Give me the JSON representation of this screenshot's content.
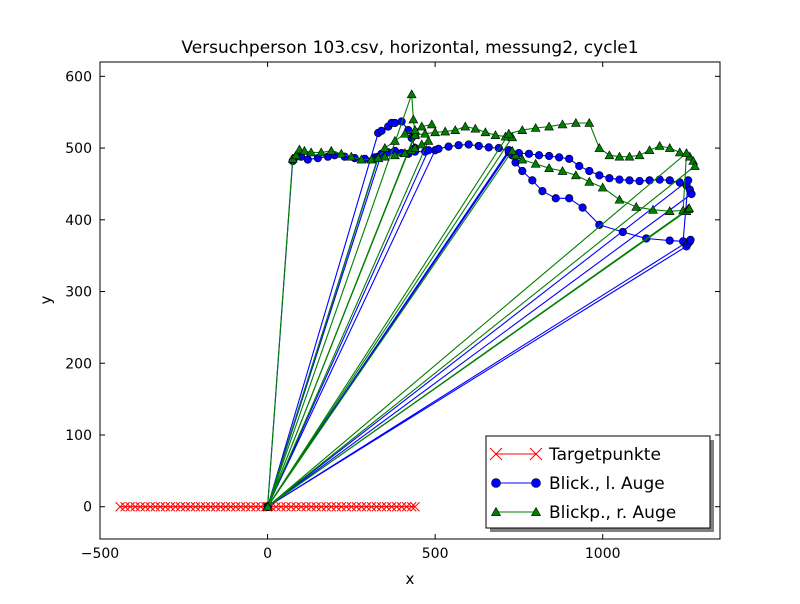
{
  "chart_data": {
    "type": "line",
    "title": "Versuchperson 103.csv, horizontal, messung2, cycle1",
    "xlabel": "x",
    "ylabel": "y",
    "xlim": [
      -500,
      1350
    ],
    "ylim": [
      -45,
      620
    ],
    "xticks": [
      -500,
      0,
      500,
      1000
    ],
    "yticks": [
      0,
      100,
      200,
      300,
      400,
      500,
      600
    ],
    "xtick_labels": [
      "−500",
      "0",
      "500",
      "1000"
    ],
    "ytick_labels": [
      "0",
      "100",
      "200",
      "300",
      "400",
      "500",
      "600"
    ],
    "grid": false,
    "legend_position": "lower-right",
    "series": [
      {
        "name": "Targetpunkte",
        "color": "#ff0000",
        "marker": "x",
        "x": [
          -440,
          -425,
          -410,
          -395,
          -380,
          -365,
          -350,
          -335,
          -320,
          -305,
          -290,
          -275,
          -260,
          -245,
          -230,
          -215,
          -200,
          -185,
          -170,
          -155,
          -140,
          -125,
          -110,
          -95,
          -80,
          -65,
          -50,
          -35,
          -20,
          -5,
          0,
          10,
          25,
          40,
          55,
          70,
          85,
          100,
          115,
          130,
          145,
          160,
          175,
          190,
          205,
          220,
          235,
          250,
          265,
          280,
          295,
          310,
          325,
          340,
          355,
          370,
          385,
          400,
          415,
          430,
          440
        ],
        "y": [
          0,
          0,
          0,
          0,
          0,
          0,
          0,
          0,
          0,
          0,
          0,
          0,
          0,
          0,
          0,
          0,
          0,
          0,
          0,
          0,
          0,
          0,
          0,
          0,
          0,
          0,
          0,
          0,
          0,
          0,
          0,
          0,
          0,
          0,
          0,
          0,
          0,
          0,
          0,
          0,
          0,
          0,
          0,
          0,
          0,
          0,
          0,
          0,
          0,
          0,
          0,
          0,
          0,
          0,
          0,
          0,
          0,
          0,
          0,
          0,
          0
        ]
      },
      {
        "name": "Blick., l. Auge",
        "color": "#0000ff",
        "marker": "o",
        "x": [
          0,
          75,
          80,
          90,
          100,
          120,
          150,
          180,
          200,
          230,
          260,
          290,
          320,
          330,
          0,
          340,
          360,
          380,
          400,
          420,
          440,
          470,
          500,
          0,
          480,
          510,
          540,
          570,
          600,
          630,
          660,
          690,
          720,
          0,
          720,
          750,
          780,
          810,
          840,
          870,
          900,
          930,
          960,
          990,
          1020,
          1050,
          1080,
          1110,
          1140,
          1170,
          1200,
          1230,
          1250,
          1260,
          1265,
          0,
          1255,
          1240,
          1200,
          1130,
          1060,
          990,
          940,
          900,
          860,
          820,
          790,
          760,
          740,
          730,
          720,
          0,
          1250,
          1255,
          1260,
          1262,
          0,
          330,
          340,
          360,
          370,
          380,
          400,
          420,
          430,
          440
        ],
        "y": [
          0,
          482,
          486,
          490,
          488,
          484,
          486,
          488,
          490,
          488,
          486,
          485,
          487,
          488,
          0,
          492,
          494,
          496,
          493,
          492,
          495,
          495,
          497,
          0,
          497,
          499,
          502,
          504,
          505,
          503,
          501,
          500,
          496,
          0,
          494,
          493,
          492,
          490,
          489,
          487,
          485,
          475,
          468,
          462,
          458,
          456,
          455,
          454,
          455,
          456,
          455,
          452,
          448,
          442,
          436,
          0,
          455,
          370,
          371,
          374,
          383,
          393,
          417,
          430,
          430,
          440,
          455,
          468,
          480,
          490,
          497,
          0,
          363,
          367,
          370,
          372,
          0,
          521,
          524,
          530,
          535,
          535,
          537,
          525,
          514,
          500
        ]
      },
      {
        "name": "Blickp., r. Auge",
        "color": "#007f00",
        "marker": "^",
        "x": [
          0,
          75,
          85,
          95,
          110,
          130,
          160,
          190,
          220,
          250,
          280,
          310,
          330,
          350,
          380,
          410,
          430,
          440,
          460,
          480,
          0,
          430,
          435,
          440,
          0,
          440,
          470,
          500,
          530,
          560,
          590,
          620,
          650,
          680,
          710,
          730,
          0,
          720,
          760,
          800,
          840,
          880,
          920,
          960,
          990,
          1020,
          1050,
          1080,
          1110,
          1140,
          1170,
          1200,
          1230,
          1260,
          1270,
          1275,
          0,
          1250,
          1240,
          1200,
          1150,
          1100,
          1050,
          1000,
          960,
          920,
          880,
          840,
          800,
          760,
          740,
          730,
          0,
          1250,
          1255,
          1258,
          0,
          330,
          350,
          380,
          410,
          440,
          460,
          490
        ],
        "y": [
          0,
          485,
          490,
          498,
          496,
          494,
          494,
          496,
          492,
          488,
          484,
          484,
          486,
          488,
          490,
          493,
          497,
          500,
          505,
          510,
          0,
          575,
          540,
          520,
          0,
          518,
          520,
          522,
          523,
          525,
          530,
          527,
          522,
          518,
          516,
          515,
          0,
          520,
          525,
          528,
          530,
          533,
          535,
          535,
          500,
          490,
          488,
          488,
          490,
          497,
          503,
          500,
          494,
          488,
          482,
          475,
          0,
          493,
          413,
          412,
          414,
          418,
          428,
          445,
          453,
          462,
          468,
          472,
          478,
          484,
          490,
          496,
          0,
          412,
          415,
          416,
          0,
          486,
          500,
          510,
          520,
          525,
          530,
          533
        ]
      }
    ]
  }
}
